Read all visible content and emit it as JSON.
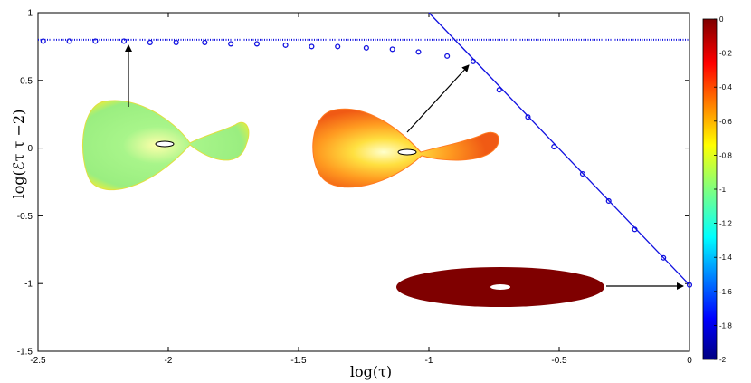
{
  "chart_data": {
    "type": "scatter",
    "title": "",
    "xlabel": "log(τ)",
    "ylabel": "log(ℰτ τ −2)",
    "xlim": [
      -2.5,
      0
    ],
    "ylim": [
      -1.5,
      1
    ],
    "xticks": [
      "-2.5",
      "-2",
      "-1.5",
      "-1",
      "-0.5",
      "0"
    ],
    "yticks": [
      "1",
      "0.5",
      "0",
      "-0.5",
      "-1",
      "-1.5"
    ],
    "grid": false,
    "legend": "none",
    "series": [
      {
        "kind": "markers",
        "color": "#1010e0",
        "x": [
          -2.48,
          -2.38,
          -2.28,
          -2.17,
          -2.07,
          -1.97,
          -1.86,
          -1.76,
          -1.66,
          -1.55,
          -1.45,
          -1.35,
          -1.24,
          -1.14,
          -1.04,
          -0.93,
          -0.83,
          -0.73,
          -0.62,
          -0.52,
          -0.41,
          -0.31,
          -0.21,
          -0.1,
          0
        ],
        "y": [
          0.79,
          0.79,
          0.79,
          0.79,
          0.78,
          0.78,
          0.78,
          0.77,
          0.77,
          0.76,
          0.75,
          0.75,
          0.74,
          0.73,
          0.71,
          0.68,
          0.64,
          0.43,
          0.23,
          0.01,
          -0.19,
          -0.39,
          -0.6,
          -0.81,
          -1.01
        ]
      },
      {
        "kind": "dotted-line",
        "color": "#1010e0",
        "x": [
          -2.5,
          0
        ],
        "y": [
          0.8,
          0.8
        ]
      },
      {
        "kind": "line",
        "color": "#1010e0",
        "x": [
          -1.0,
          0
        ],
        "y": [
          1.0,
          -1.01
        ]
      }
    ],
    "annotations": [
      {
        "shape": "bowtie",
        "color_scheme": "green"
      },
      {
        "shape": "bowtie-asym",
        "color_scheme": "orange"
      },
      {
        "shape": "disk",
        "color_scheme": "darkred"
      }
    ],
    "colorbar": {
      "min": -2,
      "max": 0,
      "ticks": [
        "0",
        "-0.2",
        "-0.4",
        "-0.6",
        "-0.8",
        "-1",
        "-1.2",
        "-1.4",
        "-1.6",
        "-1.8",
        "-2"
      ],
      "colormap": "jet"
    }
  }
}
